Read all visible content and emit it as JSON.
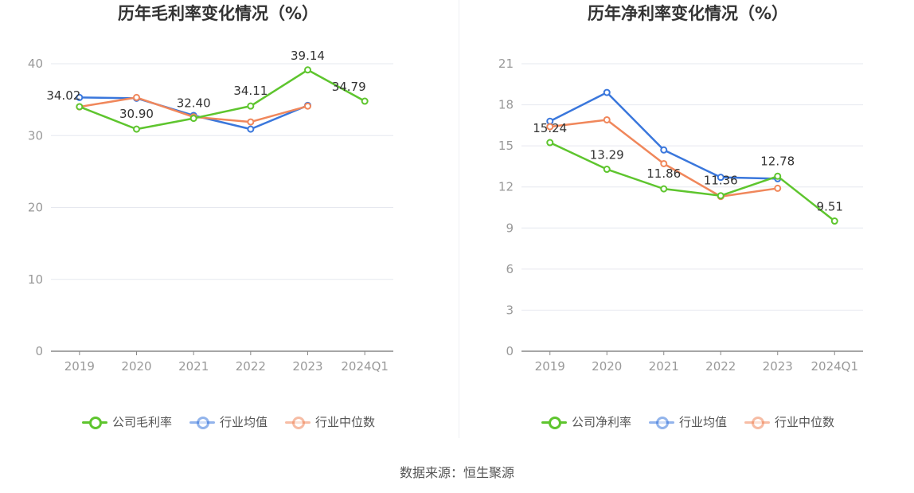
{
  "source": "数据来源：恒生聚源",
  "chart_data": [
    {
      "type": "line",
      "title": "历年毛利率变化情况（%）",
      "categories": [
        "2019",
        "2020",
        "2021",
        "2022",
        "2023",
        "2024Q1"
      ],
      "ylim": [
        0,
        40
      ],
      "yticks": [
        0,
        10,
        20,
        30,
        40
      ],
      "grid": true,
      "legend_position": "bottom",
      "series": [
        {
          "name": "公司毛利率",
          "color": "#5ec52e",
          "values": [
            34.02,
            30.9,
            32.4,
            34.11,
            39.14,
            34.79
          ],
          "labels": [
            "34.02",
            "30.90",
            "32.40",
            "34.11",
            "39.14",
            "34.79"
          ],
          "legend_faded": false
        },
        {
          "name": "行业均值",
          "color": "#3a77dc",
          "values": [
            35.3,
            35.2,
            32.8,
            30.9,
            34.2,
            null
          ],
          "legend_faded": true
        },
        {
          "name": "行业中位数",
          "color": "#f0875b",
          "values": [
            34.0,
            35.3,
            32.6,
            31.9,
            34.1,
            null
          ],
          "legend_faded": true
        }
      ]
    },
    {
      "type": "line",
      "title": "历年净利率变化情况（%）",
      "categories": [
        "2019",
        "2020",
        "2021",
        "2022",
        "2023",
        "2024Q1"
      ],
      "ylim": [
        0,
        21
      ],
      "yticks": [
        0,
        3,
        6,
        9,
        12,
        15,
        18,
        21
      ],
      "grid": true,
      "legend_position": "bottom",
      "series": [
        {
          "name": "公司净利率",
          "color": "#5ec52e",
          "values": [
            15.24,
            13.29,
            11.86,
            11.36,
            12.78,
            9.51
          ],
          "labels": [
            "15.24",
            "13.29",
            "11.86",
            "11.36",
            "12.78",
            "9.51"
          ],
          "legend_faded": false
        },
        {
          "name": "行业均值",
          "color": "#3a77dc",
          "values": [
            16.8,
            18.9,
            14.7,
            12.7,
            12.6,
            null
          ],
          "legend_faded": true
        },
        {
          "name": "行业中位数",
          "color": "#f0875b",
          "values": [
            16.4,
            16.9,
            13.7,
            11.3,
            11.9,
            null
          ],
          "legend_faded": true
        }
      ]
    }
  ]
}
